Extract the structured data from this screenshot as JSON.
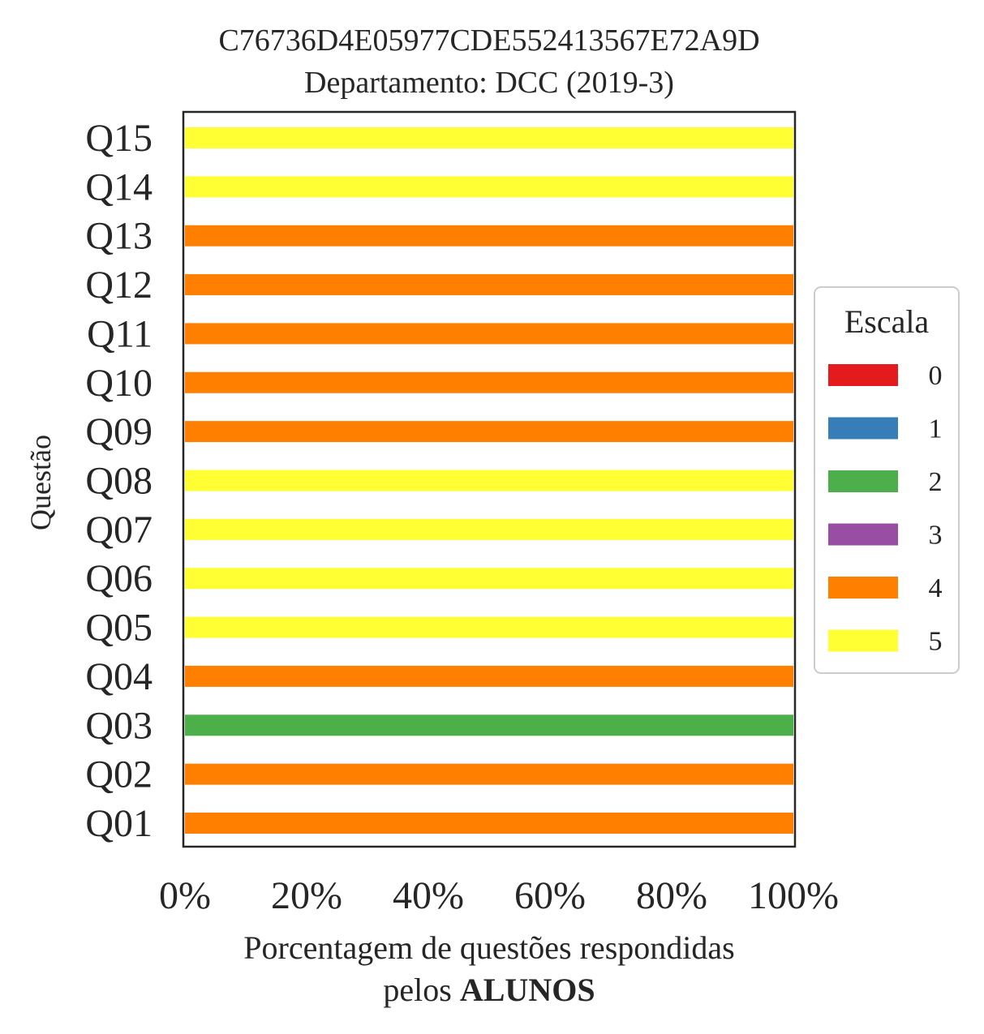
{
  "chart_data": {
    "type": "bar",
    "orientation": "horizontal",
    "stacked": true,
    "title": "C76736D4E05977CDE552413567E72A9D",
    "subtitle": "Departamento: DCC (2019-3)",
    "xlabel_line1": "Porcentagem de questões respondidas",
    "xlabel_line2_prefix": "pelos ",
    "xlabel_line2_bold": "ALUNOS",
    "ylabel": "Questão",
    "xlim": [
      0,
      100
    ],
    "xticks": [
      "0%",
      "20%",
      "40%",
      "60%",
      "80%",
      "100%"
    ],
    "categories": [
      "Q01",
      "Q02",
      "Q03",
      "Q04",
      "Q05",
      "Q06",
      "Q07",
      "Q08",
      "Q09",
      "Q10",
      "Q11",
      "Q12",
      "Q13",
      "Q14",
      "Q15"
    ],
    "series": [
      {
        "name": "0",
        "color": "#e41a1c",
        "values": [
          0,
          0,
          0,
          0,
          0,
          0,
          0,
          0,
          0,
          0,
          0,
          0,
          0,
          0,
          0
        ]
      },
      {
        "name": "1",
        "color": "#377eb8",
        "values": [
          0,
          0,
          0,
          0,
          0,
          0,
          0,
          0,
          0,
          0,
          0,
          0,
          0,
          0,
          0
        ]
      },
      {
        "name": "2",
        "color": "#4daf4a",
        "values": [
          0,
          0,
          100,
          0,
          0,
          0,
          0,
          0,
          0,
          0,
          0,
          0,
          0,
          0,
          0
        ]
      },
      {
        "name": "3",
        "color": "#984ea3",
        "values": [
          0,
          0,
          0,
          0,
          0,
          0,
          0,
          0,
          0,
          0,
          0,
          0,
          0,
          0,
          0
        ]
      },
      {
        "name": "4",
        "color": "#ff7f00",
        "values": [
          100,
          100,
          0,
          100,
          0,
          0,
          0,
          0,
          100,
          100,
          100,
          100,
          100,
          0,
          0
        ]
      },
      {
        "name": "5",
        "color": "#ffff33",
        "values": [
          0,
          0,
          0,
          0,
          100,
          100,
          100,
          100,
          0,
          0,
          0,
          0,
          0,
          100,
          100
        ]
      }
    ],
    "legend": {
      "title": "Escala",
      "position": "right"
    },
    "grid": false
  }
}
